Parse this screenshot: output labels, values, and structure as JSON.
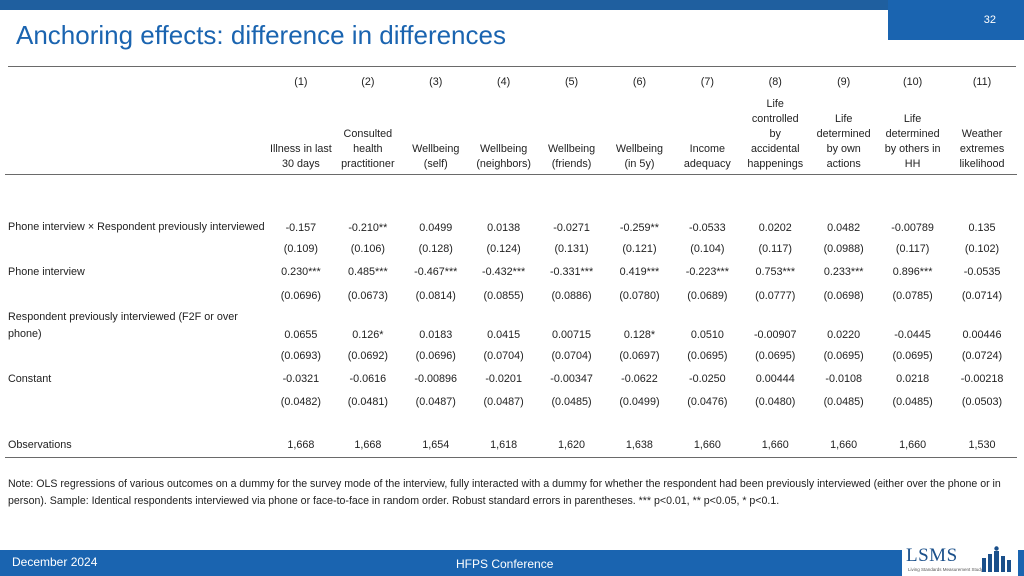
{
  "slide": {
    "page_number": "32",
    "title": "Anchoring effects: difference in differences"
  },
  "table": {
    "column_numbers": [
      "(1)",
      "(2)",
      "(3)",
      "(4)",
      "(5)",
      "(6)",
      "(7)",
      "(8)",
      "(9)",
      "(10)",
      "(11)"
    ],
    "column_headers": [
      [
        "Illness in last",
        "30 days"
      ],
      [
        "Consulted",
        "health",
        "practitioner"
      ],
      [
        "Wellbeing",
        "(self)"
      ],
      [
        "Wellbeing",
        "(neighbors)"
      ],
      [
        "Wellbeing",
        "(friends)"
      ],
      [
        "Wellbeing",
        "(in 5y)"
      ],
      [
        "Income",
        "adequacy"
      ],
      [
        "Life",
        "controlled",
        "by",
        "accidental",
        "happenings"
      ],
      [
        "Life",
        "determined",
        "by own",
        "actions"
      ],
      [
        "Life",
        "determined",
        "by others in",
        "HH"
      ],
      [
        "Weather",
        "extremes",
        "likelihood"
      ]
    ],
    "rows": [
      {
        "label": "Phone interview × Respondent previously interviewed",
        "coef": [
          "-0.157",
          "-0.210**",
          "0.0499",
          "0.0138",
          "-0.0271",
          "-0.259**",
          "-0.0533",
          "0.0202",
          "0.0482",
          "-0.00789",
          "0.135"
        ],
        "se": [
          "(0.109)",
          "(0.106)",
          "(0.128)",
          "(0.124)",
          "(0.131)",
          "(0.121)",
          "(0.104)",
          "(0.117)",
          "(0.0988)",
          "(0.117)",
          "(0.102)"
        ]
      },
      {
        "label": "Phone interview",
        "coef": [
          "0.230***",
          "0.485***",
          "-0.467***",
          "-0.432***",
          "-0.331***",
          "0.419***",
          "-0.223***",
          "0.753***",
          "0.233***",
          "0.896***",
          "-0.0535"
        ],
        "se": [
          "(0.0696)",
          "(0.0673)",
          "(0.0814)",
          "(0.0855)",
          "(0.0886)",
          "(0.0780)",
          "(0.0689)",
          "(0.0777)",
          "(0.0698)",
          "(0.0785)",
          "(0.0714)"
        ]
      },
      {
        "label": "Respondent previously interviewed (F2F or over phone)",
        "coef": [
          "0.0655",
          "0.126*",
          "0.0183",
          "0.0415",
          "0.00715",
          "0.128*",
          "0.0510",
          "-0.00907",
          "0.0220",
          "-0.0445",
          "0.00446"
        ],
        "se": [
          "(0.0693)",
          "(0.0692)",
          "(0.0696)",
          "(0.0704)",
          "(0.0704)",
          "(0.0697)",
          "(0.0695)",
          "(0.0695)",
          "(0.0695)",
          "(0.0695)",
          "(0.0724)"
        ]
      },
      {
        "label": "Constant",
        "coef": [
          "-0.0321",
          "-0.0616",
          "-0.00896",
          "-0.0201",
          "-0.00347",
          "-0.0622",
          "-0.0250",
          "0.00444",
          "-0.0108",
          "0.0218",
          "-0.00218"
        ],
        "se": [
          "(0.0482)",
          "(0.0481)",
          "(0.0487)",
          "(0.0487)",
          "(0.0485)",
          "(0.0499)",
          "(0.0476)",
          "(0.0480)",
          "(0.0485)",
          "(0.0485)",
          "(0.0503)"
        ]
      }
    ],
    "observations": {
      "label": "Observations",
      "values": [
        "1,668",
        "1,668",
        "1,654",
        "1,618",
        "1,620",
        "1,638",
        "1,660",
        "1,660",
        "1,660",
        "1,660",
        "1,530"
      ]
    }
  },
  "note": "Note: OLS regressions of various outcomes on a dummy for the survey mode of the interview, fully interacted with a dummy for whether the respondent had been previously interviewed (either over the phone or in person). Sample: Identical respondents interviewed via phone or face-to-face in random order. Robust standard errors in parentheses. *** p<0.01, ** p<0.05, * p<0.1.",
  "footer": {
    "date": "December 2024",
    "conference": "HFPS Conference",
    "logo_text": "LSMS",
    "logo_subtitle": "Living Standards Measurement Study"
  },
  "colors": {
    "brand_blue": "#1a64b0",
    "top_bar": "#1f5f9f",
    "logo_blue": "#1a4f8a"
  }
}
